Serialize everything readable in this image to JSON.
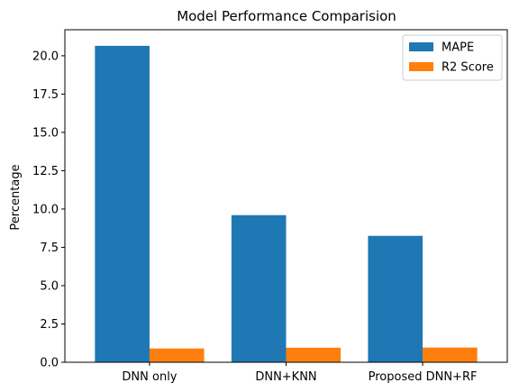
{
  "chart_data": {
    "type": "bar",
    "title": "Model Performance Comparision",
    "xlabel": "",
    "ylabel": "Percentage",
    "categories": [
      "DNN only",
      "DNN+KNN",
      "Proposed DNN+RF"
    ],
    "series": [
      {
        "name": "MAPE",
        "values": [
          20.65,
          9.6,
          8.25
        ],
        "color": "#1f77b4"
      },
      {
        "name": "R2 Score",
        "values": [
          0.9,
          0.95,
          0.96
        ],
        "color": "#ff7f0e"
      }
    ],
    "ylim": [
      0,
      21.7
    ],
    "yticks": [
      "0.0",
      "2.5",
      "5.0",
      "7.5",
      "10.0",
      "12.5",
      "15.0",
      "17.5",
      "20.0"
    ],
    "grid": false,
    "legend_position": "top-right"
  }
}
